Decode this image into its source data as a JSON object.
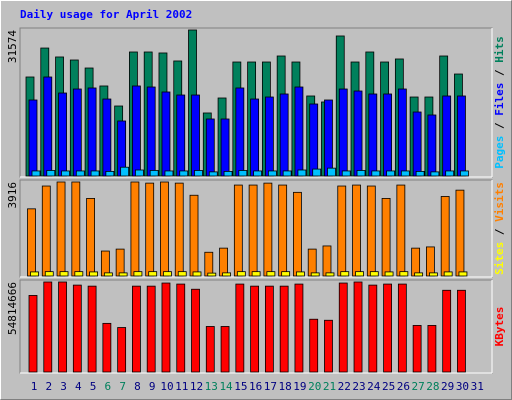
{
  "title": "Daily usage for April 2002",
  "legend_separator": " / ",
  "chart_data": [
    {
      "type": "bar",
      "categories": [
        "1",
        "2",
        "3",
        "4",
        "5",
        "6",
        "7",
        "8",
        "9",
        "10",
        "11",
        "12",
        "13",
        "14",
        "15",
        "16",
        "17",
        "18",
        "19",
        "20",
        "21",
        "22",
        "23",
        "24",
        "25",
        "26",
        "27",
        "28",
        "29",
        "30",
        "31"
      ],
      "category_colors": [
        "#000080",
        "#000080",
        "#000080",
        "#000080",
        "#000080",
        "#00805c",
        "#00805c",
        "#000080",
        "#000080",
        "#000080",
        "#000080",
        "#000080",
        "#00805c",
        "#00805c",
        "#000080",
        "#000080",
        "#000080",
        "#000080",
        "#000080",
        "#00805c",
        "#00805c",
        "#000080",
        "#000080",
        "#000080",
        "#000080",
        "#000080",
        "#00805c",
        "#00805c",
        "#000080",
        "#000080",
        "#000080"
      ],
      "ylim": [
        0,
        31574
      ],
      "yticks": [
        31574
      ],
      "series": [
        {
          "name": "Hits",
          "color": "#00805c",
          "values": [
            21480,
            27700,
            25780,
            25130,
            23410,
            19550,
            15250,
            26850,
            26850,
            26640,
            24920,
            31574,
            13750,
            16970,
            24700,
            24700,
            24700,
            25990,
            24700,
            17400,
            16110,
            30290,
            24700,
            26850,
            24700,
            25350,
            17180,
            17180,
            25990,
            22120,
            null
          ]
        },
        {
          "name": "Files",
          "color": "#0000ff",
          "values": [
            16540,
            21480,
            18040,
            18900,
            19120,
            16750,
            12030,
            19550,
            19330,
            18260,
            17610,
            17610,
            12460,
            12460,
            19120,
            16750,
            17180,
            17830,
            19330,
            15680,
            16540,
            18900,
            18470,
            17830,
            17830,
            18900,
            13960,
            13320,
            17400,
            17400,
            null
          ]
        },
        {
          "name": "Pages",
          "color": "#00c0ff",
          "values": [
            1300,
            1400,
            1300,
            1300,
            1300,
            1200,
            2100,
            1500,
            1400,
            1300,
            1300,
            1400,
            1100,
            1200,
            1400,
            1300,
            1300,
            1300,
            1500,
            1700,
            1900,
            1300,
            1400,
            1300,
            1300,
            1300,
            1200,
            1100,
            1300,
            1300,
            null
          ]
        }
      ]
    },
    {
      "type": "bar",
      "ylim": [
        0,
        3916
      ],
      "yticks": [
        3916
      ],
      "series": [
        {
          "name": "Visits",
          "color": "#ff8000",
          "values": [
            2810,
            3750,
            3916,
            3916,
            3240,
            1070,
            1150,
            3916,
            3870,
            3916,
            3870,
            3370,
            1020,
            1190,
            3790,
            3790,
            3870,
            3790,
            3490,
            1150,
            1280,
            3750,
            3790,
            3750,
            3240,
            3790,
            1190,
            1240,
            3320,
            3580,
            null
          ]
        },
        {
          "name": "Sites",
          "color": "#ffff00",
          "values": [
            210,
            220,
            220,
            220,
            210,
            170,
            170,
            220,
            220,
            220,
            220,
            210,
            160,
            170,
            220,
            220,
            220,
            220,
            210,
            170,
            170,
            220,
            220,
            220,
            210,
            220,
            170,
            170,
            210,
            210,
            null
          ]
        }
      ]
    },
    {
      "type": "bar",
      "ylim": [
        0,
        54814666
      ],
      "yticks": [
        54814666
      ],
      "series": [
        {
          "name": "KBytes",
          "color": "#ff0000",
          "values": [
            46717000,
            54814666,
            54814666,
            52946000,
            52323000,
            29899000,
            27407000,
            52323000,
            52323000,
            54192000,
            53569000,
            50454000,
            28030000,
            28030000,
            53569000,
            52323000,
            52323000,
            52323000,
            53569000,
            32390000,
            31768000,
            54192000,
            54814666,
            52946000,
            53569000,
            53569000,
            28653000,
            28653000,
            49832000,
            49832000,
            null
          ]
        }
      ]
    }
  ]
}
